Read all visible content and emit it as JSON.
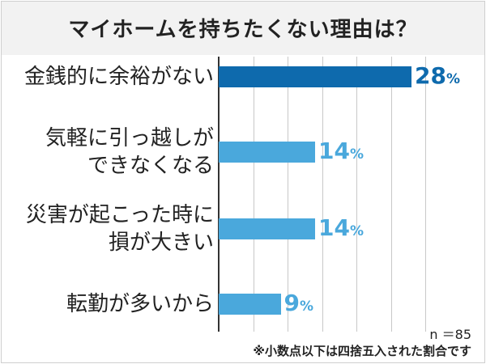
{
  "chart_data": {
    "type": "bar",
    "orientation": "horizontal",
    "title": "マイホームを持ちたくない理由は？",
    "categories": [
      [
        "金銭的に余裕がない"
      ],
      [
        "気軽に引っ越しが",
        "できなくなる"
      ],
      [
        "災害が起こった時に",
        "損が大きい"
      ],
      [
        "転勤が多いから"
      ]
    ],
    "values": [
      28,
      14,
      14,
      9
    ],
    "unit": "%",
    "xlim": [
      0,
      30
    ],
    "grid": true,
    "highlight_index": 0,
    "colors": {
      "highlight": "#0e6aad",
      "normal": "#4aa8dc"
    }
  },
  "sample_size": "n ＝85",
  "note": "※小数点以下は四捨五入された割合です"
}
